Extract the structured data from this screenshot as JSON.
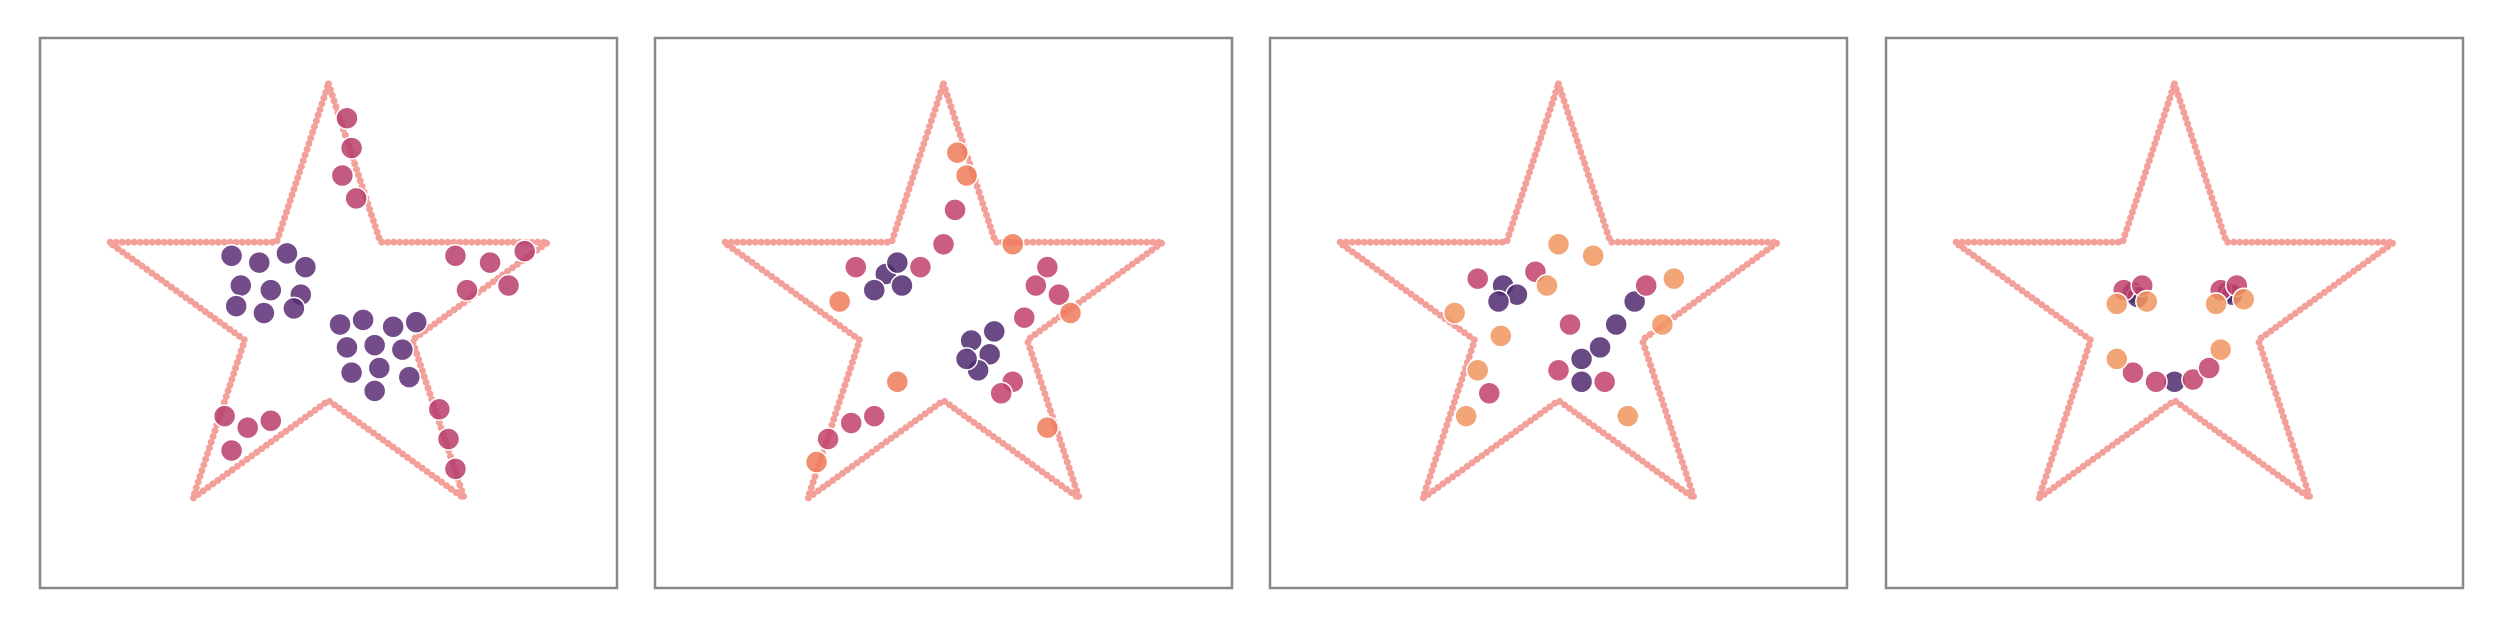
{
  "chart_data": [
    {
      "type": "scatter",
      "xlim": [
        -1.25,
        1.25
      ],
      "ylim": [
        -1.2,
        1.2
      ],
      "outline": {
        "color": "#f4a09a",
        "x": [
          0,
          0.225,
          0.951,
          0.363,
          0.588,
          0,
          -0.588,
          -0.363,
          -0.951,
          -0.225,
          0
        ],
        "y": [
          1,
          0.309,
          0.309,
          -0.118,
          -0.809,
          -0.382,
          -0.809,
          -0.118,
          0.309,
          0.309,
          1
        ]
      },
      "series": [
        {
          "color": "#5a2d74",
          "x": [
            -0.42,
            -0.3,
            -0.18,
            -0.1,
            -0.38,
            -0.25,
            -0.12,
            -0.4,
            -0.28,
            -0.15,
            0.05,
            0.15,
            0.28,
            0.38,
            0.08,
            0.2,
            0.32,
            0.1,
            0.22,
            0.35,
            0.2
          ],
          "y": [
            0.25,
            0.22,
            0.26,
            0.2,
            0.12,
            0.1,
            0.08,
            0.03,
            0.0,
            0.02,
            -0.05,
            -0.03,
            -0.06,
            -0.04,
            -0.15,
            -0.14,
            -0.16,
            -0.26,
            -0.24,
            -0.28,
            -0.34
          ]
        },
        {
          "color": "#b73d6c",
          "x": [
            0.08,
            0.1,
            0.06,
            0.12,
            0.55,
            0.7,
            0.85,
            0.6,
            0.78,
            -0.45,
            -0.35,
            -0.25,
            -0.42,
            0.48,
            0.52,
            0.55
          ],
          "y": [
            0.85,
            0.72,
            0.6,
            0.5,
            0.25,
            0.22,
            0.27,
            0.1,
            0.12,
            -0.45,
            -0.5,
            -0.47,
            -0.6,
            -0.42,
            -0.55,
            -0.68
          ]
        }
      ]
    },
    {
      "type": "scatter",
      "xlim": [
        -1.25,
        1.25
      ],
      "ylim": [
        -1.2,
        1.2
      ],
      "outline": {
        "color": "#f4a09a",
        "x": [
          0,
          0.225,
          0.951,
          0.363,
          0.588,
          0,
          -0.588,
          -0.363,
          -0.951,
          -0.225,
          0
        ],
        "y": [
          1,
          0.309,
          0.309,
          -0.118,
          -0.809,
          -0.382,
          -0.809,
          -0.118,
          0.309,
          0.309,
          1
        ]
      },
      "series": [
        {
          "color": "#4f2a6e",
          "x": [
            -0.25,
            -0.18,
            -0.3,
            -0.2,
            0.12,
            0.2,
            0.15,
            0.22,
            0.1
          ],
          "y": [
            0.17,
            0.12,
            0.1,
            0.22,
            -0.12,
            -0.18,
            -0.25,
            -0.08,
            -0.2
          ]
        },
        {
          "color": "#c2416b",
          "x": [
            -0.38,
            -0.1,
            0.0,
            0.05,
            0.4,
            0.5,
            0.45,
            0.3,
            0.25,
            -0.4,
            -0.5,
            -0.3,
            0.35
          ],
          "y": [
            0.2,
            0.2,
            0.3,
            0.45,
            0.12,
            0.08,
            0.2,
            -0.3,
            -0.35,
            -0.48,
            -0.55,
            -0.45,
            -0.02
          ]
        },
        {
          "color": "#ee7b5b",
          "x": [
            0.06,
            0.1,
            -0.45,
            0.55,
            -0.2,
            -0.55,
            0.45,
            0.3
          ],
          "y": [
            0.7,
            0.6,
            0.05,
            0.0,
            -0.3,
            -0.65,
            -0.5,
            0.3
          ]
        }
      ]
    },
    {
      "type": "scatter",
      "xlim": [
        -1.25,
        1.25
      ],
      "ylim": [
        -1.2,
        1.2
      ],
      "outline": {
        "color": "#f4a09a",
        "x": [
          0,
          0.225,
          0.951,
          0.363,
          0.588,
          0,
          -0.588,
          -0.363,
          -0.951,
          -0.225,
          0
        ],
        "y": [
          1,
          0.309,
          0.309,
          -0.118,
          -0.809,
          -0.382,
          -0.809,
          -0.118,
          0.309,
          0.309,
          1
        ]
      },
      "series": [
        {
          "color": "#4f2a6e",
          "x": [
            -0.24,
            -0.18,
            -0.26,
            0.1,
            0.18,
            0.25,
            0.33,
            0.1
          ],
          "y": [
            0.12,
            0.08,
            0.05,
            -0.2,
            -0.15,
            -0.05,
            0.05,
            -0.3
          ]
        },
        {
          "color": "#c2416b",
          "x": [
            -0.35,
            -0.1,
            0.05,
            0.38,
            0.2,
            0.0,
            -0.3
          ],
          "y": [
            0.15,
            0.18,
            -0.05,
            0.12,
            -0.3,
            -0.25,
            -0.35
          ]
        },
        {
          "color": "#f0955f",
          "x": [
            -0.45,
            0.0,
            0.15,
            0.5,
            -0.35,
            -0.4,
            0.3,
            0.45,
            -0.05,
            -0.25
          ],
          "y": [
            0.0,
            0.3,
            0.25,
            0.15,
            -0.25,
            -0.45,
            -0.45,
            -0.05,
            0.12,
            -0.1
          ]
        }
      ]
    },
    {
      "type": "scatter",
      "xlim": [
        -1.25,
        1.25
      ],
      "ylim": [
        -1.2,
        1.2
      ],
      "outline": {
        "color": "#f4a09a",
        "x": [
          0,
          0.225,
          0.951,
          0.363,
          0.588,
          0,
          -0.588,
          -0.363,
          -0.951,
          -0.225,
          0
        ],
        "y": [
          1,
          0.309,
          0.309,
          -0.118,
          -0.809,
          -0.382,
          -0.809,
          -0.118,
          0.309,
          0.309,
          1
        ]
      },
      "series": [
        {
          "color": "#4f2a6e",
          "x": [
            -0.18,
            -0.16,
            0.23,
            0.25,
            0.0
          ],
          "y": [
            0.09,
            0.07,
            0.09,
            0.08,
            -0.3
          ]
        },
        {
          "color": "#c2416b",
          "x": [
            -0.22,
            -0.14,
            0.2,
            0.27,
            -0.18,
            -0.08,
            0.08,
            0.15
          ],
          "y": [
            0.1,
            0.12,
            0.1,
            0.12,
            -0.26,
            -0.3,
            -0.29,
            -0.24
          ]
        },
        {
          "color": "#f0955f",
          "x": [
            -0.25,
            -0.12,
            0.18,
            0.3,
            -0.25,
            0.2
          ],
          "y": [
            0.04,
            0.05,
            0.04,
            0.06,
            -0.2,
            -0.16
          ]
        }
      ]
    }
  ]
}
